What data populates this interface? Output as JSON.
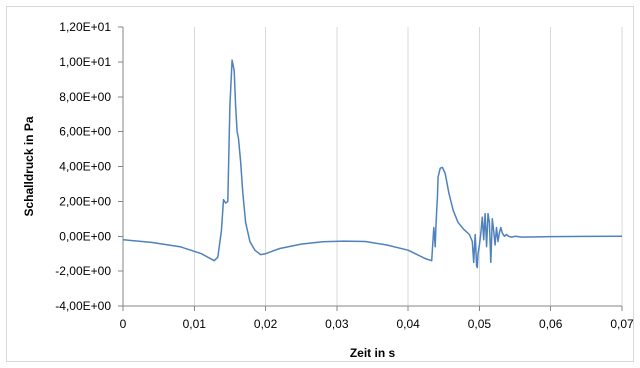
{
  "chart_data": {
    "type": "line",
    "title": "",
    "xlabel": "Zeit in s",
    "ylabel": "Schalldruck in Pa",
    "xlim": [
      0,
      0.07
    ],
    "ylim": [
      -4,
      12
    ],
    "x_ticks": [
      0,
      0.01,
      0.02,
      0.03,
      0.04,
      0.05,
      0.06,
      0.07
    ],
    "x_tick_labels": [
      "0",
      "0,01",
      "0,02",
      "0,03",
      "0,04",
      "0,05",
      "0,06",
      "0,07"
    ],
    "y_ticks": [
      -4,
      -2,
      0,
      2,
      4,
      6,
      8,
      10,
      12
    ],
    "y_tick_labels": [
      "-4,00E+00",
      "-2,00E+00",
      "0,00E+00",
      "2,00E+00",
      "4,00E+00",
      "6,00E+00",
      "8,00E+00",
      "1,00E+01",
      "1,20E+01"
    ],
    "grid": "vertical",
    "legend": "none",
    "series": [
      {
        "color": "#4f81bd",
        "x": [
          0,
          0.004,
          0.008,
          0.011,
          0.0128,
          0.0133,
          0.0138,
          0.0141,
          0.0144,
          0.0147,
          0.015,
          0.0153,
          0.0156,
          0.0158,
          0.016,
          0.0162,
          0.0165,
          0.0168,
          0.0172,
          0.0178,
          0.0185,
          0.0193,
          0.02,
          0.021,
          0.022,
          0.025,
          0.028,
          0.031,
          0.034,
          0.037,
          0.04,
          0.0425,
          0.0433,
          0.0436,
          0.0437,
          0.0438,
          0.0439,
          0.044,
          0.0441,
          0.0442,
          0.0445,
          0.0448,
          0.0452,
          0.0457,
          0.0463,
          0.047,
          0.0478,
          0.0486,
          0.049,
          0.0492,
          0.0494,
          0.0496,
          0.0497,
          0.0498,
          0.05,
          0.0502,
          0.0504,
          0.0506,
          0.0508,
          0.051,
          0.0512,
          0.0514,
          0.0516,
          0.0518,
          0.052,
          0.0522,
          0.0524,
          0.0526,
          0.0528,
          0.053,
          0.0532,
          0.0535,
          0.0538,
          0.0541,
          0.0545,
          0.055,
          0.056,
          0.06,
          0.065,
          0.07
        ],
        "y": [
          -0.2,
          -0.35,
          -0.6,
          -1.0,
          -1.4,
          -1.2,
          0.3,
          2.1,
          1.9,
          2.0,
          7.5,
          10.1,
          9.5,
          7.5,
          6.0,
          5.6,
          4.3,
          2.5,
          0.8,
          -0.3,
          -0.8,
          -1.05,
          -1.0,
          -0.85,
          -0.7,
          -0.45,
          -0.32,
          -0.28,
          -0.3,
          -0.5,
          -0.8,
          -1.3,
          -1.4,
          0.5,
          0.0,
          -0.6,
          0.5,
          1.5,
          2.2,
          3.4,
          3.9,
          3.95,
          3.6,
          2.5,
          1.5,
          0.8,
          0.4,
          0.1,
          -0.3,
          -1.5,
          0.1,
          -1.7,
          -1.8,
          -1.0,
          -0.5,
          0.2,
          1.1,
          -0.2,
          1.3,
          -0.6,
          1.3,
          0.8,
          -1.5,
          1.0,
          0.3,
          -0.5,
          0.5,
          -0.3,
          0.2,
          0.5,
          0.2,
          0.0,
          0.1,
          0.0,
          -0.05,
          0.0,
          -0.05,
          -0.02,
          -0.01,
          0.0
        ]
      }
    ]
  }
}
